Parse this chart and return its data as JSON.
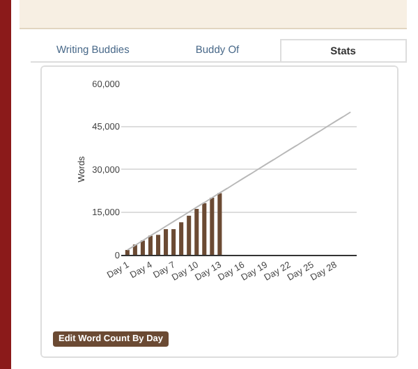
{
  "chart_data": {
    "type": "bar",
    "ylabel": "Words",
    "categories": [
      "Day 1",
      null,
      null,
      "Day 4",
      null,
      null,
      "Day 7",
      null,
      null,
      "Day 10",
      null,
      null,
      "Day 13",
      null,
      null,
      "Day 16",
      null,
      null,
      "Day 19",
      null,
      null,
      "Day 22",
      null,
      null,
      "Day 25",
      null,
      null,
      "Day 28",
      null,
      null
    ],
    "series": [
      {
        "color": "#6b4a33",
        "values": [
          1700,
          3600,
          5000,
          6700,
          7000,
          9000,
          9000,
          11400,
          13700,
          16100,
          18100,
          20000,
          21600,
          null,
          null,
          null,
          null,
          null,
          null,
          null,
          null,
          null,
          null,
          null,
          null,
          null,
          null,
          null,
          null,
          null
        ]
      },
      {
        "type": "line",
        "color": "#b8b8b8",
        "marker": "none",
        "line_style": "solid",
        "values": [
          1700,
          3300,
          5000,
          6700,
          8300,
          10000,
          11700,
          13300,
          15000,
          16700,
          18300,
          20000,
          21700,
          23300,
          25000,
          26700,
          28300,
          30000,
          31700,
          33300,
          35000,
          36700,
          38300,
          40000,
          41700,
          43300,
          45000,
          46700,
          48300,
          50000
        ]
      }
    ],
    "ylim": [
      0,
      60000
    ],
    "yticks": [
      0,
      {
        "value": 15000,
        "label": "15,000"
      },
      {
        "value": 30000,
        "label": "30,000"
      },
      {
        "value": 45000,
        "label": "45,000"
      },
      {
        "value": 60000,
        "label": "60,000"
      }
    ],
    "grid": "y",
    "legend": false,
    "annotations": [
      "Writing Buddies",
      "Buddy Of",
      "Stats",
      "Edit Word Count By Day"
    ]
  }
}
